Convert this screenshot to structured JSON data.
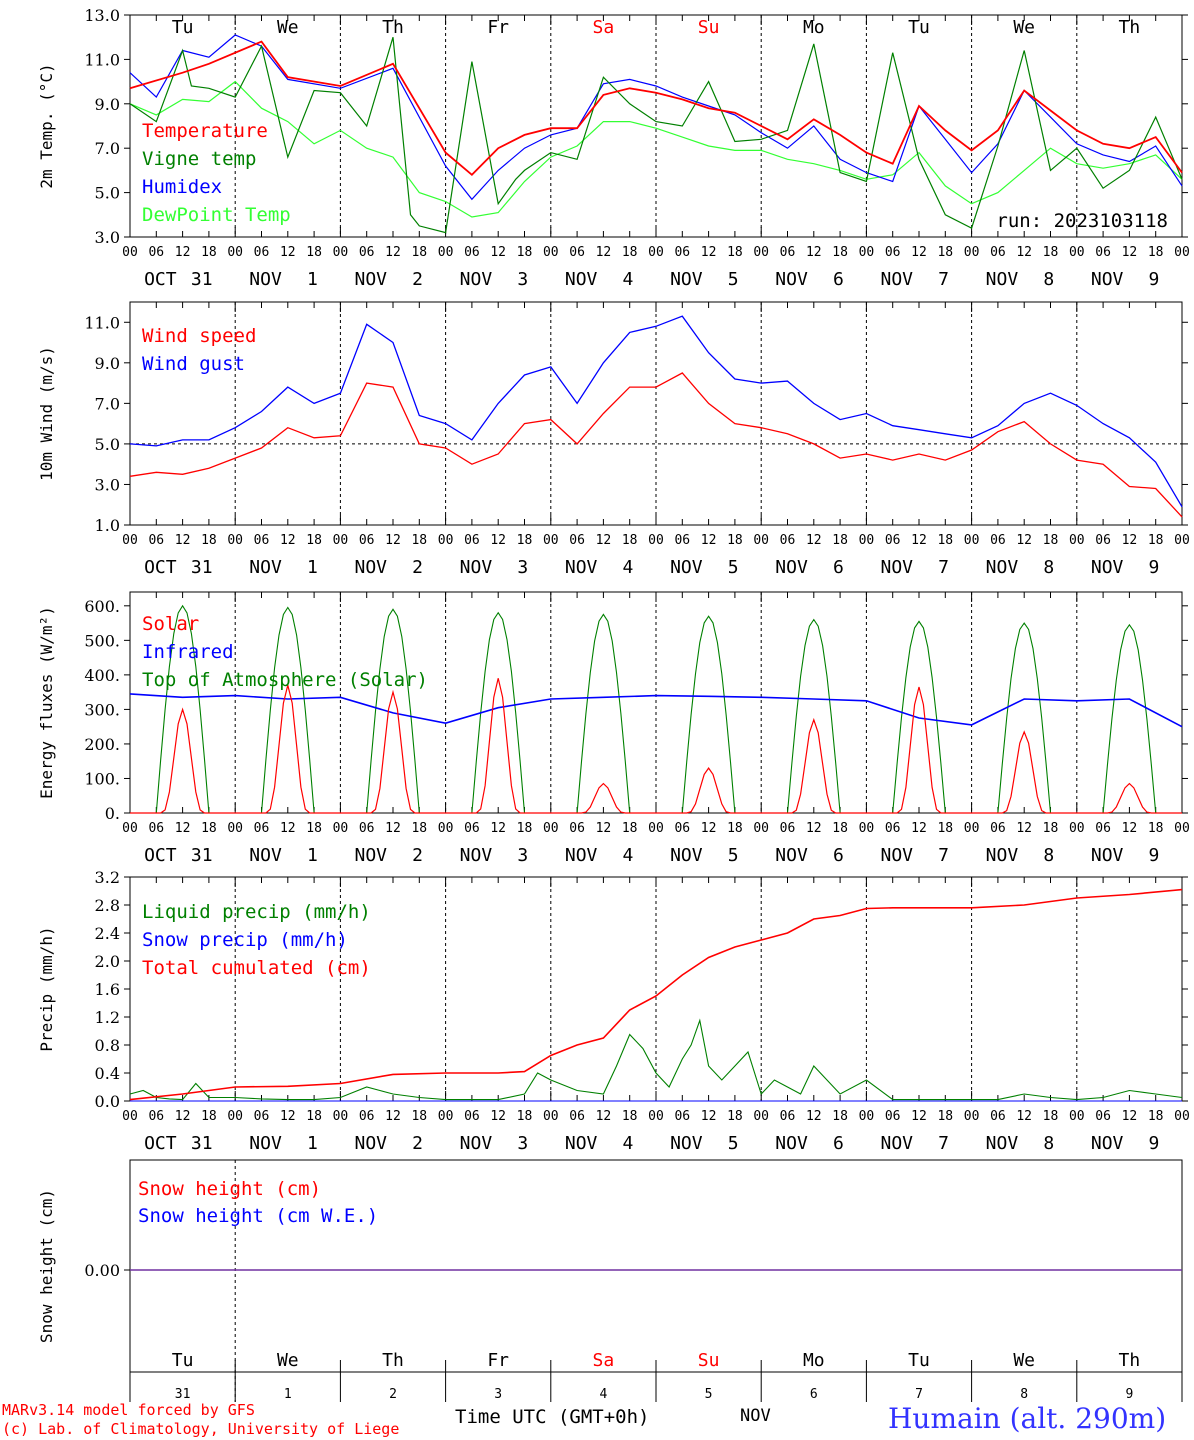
{
  "chart_data": [
    {
      "type": "line",
      "ylabel": "2m Temp. (°C)",
      "yticks": [
        "3.0",
        "5.0",
        "7.0",
        "9.0",
        "11.0",
        "13.0"
      ],
      "ylim": [
        3,
        13
      ],
      "x_start": "2023-10-31 00",
      "x_end": "2023-11-10 00",
      "run_label": "run: 2023103118",
      "legend_placement": "top-left",
      "series": [
        {
          "name": "Temperature",
          "color": "#ff0000",
          "x_hours": [
            0,
            12,
            18,
            30,
            36,
            48,
            60,
            72,
            78,
            84,
            90,
            96,
            102,
            108,
            114,
            120,
            126,
            132,
            138,
            144,
            150,
            156,
            162,
            168,
            174,
            180,
            186,
            192,
            198,
            204,
            210,
            216,
            222,
            228,
            234,
            240
          ],
          "values": [
            9.7,
            10.4,
            10.8,
            11.8,
            10.2,
            9.8,
            10.8,
            6.8,
            5.8,
            7.0,
            7.6,
            7.9,
            7.9,
            9.4,
            9.7,
            9.5,
            9.2,
            8.8,
            8.6,
            8.0,
            7.4,
            8.3,
            7.6,
            6.8,
            6.3,
            8.9,
            7.8,
            6.9,
            7.8,
            9.6,
            8.7,
            7.8,
            7.2,
            7.0,
            7.5,
            5.9
          ]
        },
        {
          "name": "Vigne temp",
          "color": "#008000",
          "x_hours": [
            0,
            6,
            12,
            14,
            18,
            24,
            30,
            36,
            42,
            48,
            54,
            60,
            64,
            66,
            72,
            78,
            84,
            88,
            90,
            96,
            102,
            108,
            114,
            120,
            126,
            132,
            138,
            144,
            150,
            156,
            162,
            168,
            174,
            180,
            186,
            192,
            198,
            204,
            210,
            216,
            222,
            228,
            234,
            240
          ],
          "values": [
            9.0,
            8.2,
            11.4,
            9.8,
            9.7,
            9.3,
            11.6,
            6.6,
            9.6,
            9.5,
            8.0,
            12.0,
            4.0,
            3.5,
            3.2,
            10.9,
            4.5,
            5.6,
            6.0,
            6.8,
            6.5,
            10.2,
            9.0,
            8.2,
            8.0,
            10.0,
            7.3,
            7.4,
            7.8,
            11.7,
            5.9,
            5.5,
            11.3,
            6.5,
            4.0,
            3.4,
            7.1,
            11.4,
            6.0,
            7.0,
            5.2,
            6.0,
            8.4,
            5.6
          ]
        },
        {
          "name": "Humidex",
          "color": "#0000ff",
          "x_hours": [
            0,
            6,
            12,
            18,
            24,
            30,
            36,
            48,
            60,
            72,
            78,
            84,
            90,
            96,
            102,
            108,
            114,
            120,
            126,
            132,
            138,
            144,
            150,
            156,
            162,
            168,
            174,
            180,
            186,
            192,
            198,
            204,
            210,
            216,
            222,
            228,
            234,
            240
          ],
          "values": [
            10.4,
            9.3,
            11.4,
            11.1,
            12.1,
            11.6,
            10.1,
            9.7,
            10.6,
            6.2,
            4.7,
            6.0,
            7.0,
            7.6,
            7.9,
            9.9,
            10.1,
            9.8,
            9.3,
            8.9,
            8.5,
            7.7,
            7.0,
            8.0,
            6.5,
            5.9,
            5.5,
            8.9,
            7.4,
            5.9,
            7.2,
            9.6,
            8.4,
            7.2,
            6.7,
            6.4,
            7.1,
            5.3
          ]
        },
        {
          "name": "DewPoint Temp",
          "color": "#33ff33",
          "x_hours": [
            0,
            6,
            12,
            18,
            24,
            30,
            36,
            42,
            48,
            54,
            60,
            66,
            72,
            78,
            84,
            90,
            96,
            102,
            108,
            114,
            120,
            126,
            132,
            138,
            144,
            150,
            156,
            162,
            168,
            174,
            180,
            186,
            192,
            198,
            204,
            210,
            216,
            222,
            228,
            234,
            240
          ],
          "values": [
            9.0,
            8.5,
            9.2,
            9.1,
            10.0,
            8.8,
            8.2,
            7.2,
            7.8,
            7.0,
            6.6,
            5.0,
            4.6,
            3.9,
            4.1,
            5.5,
            6.6,
            7.1,
            8.2,
            8.2,
            7.9,
            7.5,
            7.1,
            6.9,
            6.9,
            6.5,
            6.3,
            6.0,
            5.6,
            5.8,
            6.8,
            5.3,
            4.5,
            5.0,
            6.0,
            7.0,
            6.3,
            6.1,
            6.3,
            6.7,
            5.6
          ]
        }
      ]
    },
    {
      "type": "line",
      "ylabel": "10m Wind (m/s)",
      "yticks": [
        "1.0",
        "3.0",
        "5.0",
        "7.0",
        "9.0",
        "11.0"
      ],
      "ylim": [
        1,
        12
      ],
      "reference_line": 5,
      "legend_placement": "top-left",
      "series": [
        {
          "name": "Wind speed",
          "color": "#ff0000",
          "x_hours": [
            0,
            6,
            12,
            18,
            24,
            30,
            36,
            42,
            48,
            54,
            60,
            66,
            72,
            78,
            84,
            90,
            96,
            102,
            108,
            114,
            120,
            126,
            132,
            138,
            144,
            150,
            156,
            162,
            168,
            174,
            180,
            186,
            192,
            198,
            204,
            210,
            216,
            222,
            228,
            234,
            240
          ],
          "values": [
            3.4,
            3.6,
            3.5,
            3.8,
            4.3,
            4.8,
            5.8,
            5.3,
            5.4,
            8.0,
            7.8,
            5.0,
            4.8,
            4.0,
            4.5,
            6.0,
            6.2,
            5.0,
            6.5,
            7.8,
            7.8,
            8.5,
            7.0,
            6.0,
            5.8,
            5.5,
            5.0,
            4.3,
            4.5,
            4.2,
            4.5,
            4.2,
            4.7,
            5.6,
            6.1,
            5.0,
            4.2,
            4.0,
            2.9,
            2.8,
            1.4
          ]
        },
        {
          "name": "Wind gust",
          "color": "#0000ff",
          "x_hours": [
            0,
            6,
            12,
            18,
            24,
            30,
            36,
            42,
            48,
            54,
            60,
            66,
            72,
            78,
            84,
            90,
            96,
            102,
            108,
            114,
            120,
            126,
            132,
            138,
            144,
            150,
            156,
            162,
            168,
            174,
            180,
            186,
            192,
            198,
            204,
            210,
            216,
            222,
            228,
            234,
            240
          ],
          "values": [
            5.0,
            4.9,
            5.2,
            5.2,
            5.8,
            6.6,
            7.8,
            7.0,
            7.5,
            10.9,
            10.0,
            6.4,
            6.0,
            5.2,
            7.0,
            8.4,
            8.8,
            7.0,
            9.0,
            10.5,
            10.8,
            11.3,
            9.5,
            8.2,
            8.0,
            8.1,
            7.0,
            6.2,
            6.5,
            5.9,
            5.7,
            5.5,
            5.3,
            5.9,
            7.0,
            7.5,
            6.9,
            6.0,
            5.3,
            4.1,
            1.9
          ]
        }
      ]
    },
    {
      "type": "line",
      "ylabel": "Energy fluxes (W/m²)",
      "yticks": [
        "0.",
        "100.",
        "200.",
        "300.",
        "400.",
        "500.",
        "600."
      ],
      "ylim": [
        0,
        640
      ],
      "legend_placement": "top-left",
      "series": [
        {
          "name": "Solar",
          "color": "#ff0000",
          "peak_hours": [
            12,
            36,
            60,
            84,
            108,
            132,
            156,
            180,
            204,
            228
          ],
          "peaks": [
            300,
            370,
            350,
            390,
            85,
            130,
            270,
            365,
            235,
            85
          ]
        },
        {
          "name": "Infrared",
          "color": "#0000ff",
          "x_hours": [
            0,
            12,
            24,
            36,
            48,
            60,
            72,
            84,
            96,
            108,
            120,
            132,
            144,
            156,
            168,
            180,
            192,
            204,
            216,
            228,
            240
          ],
          "values": [
            345,
            335,
            340,
            330,
            335,
            290,
            260,
            305,
            330,
            335,
            340,
            338,
            335,
            330,
            325,
            275,
            255,
            330,
            325,
            330,
            250
          ]
        },
        {
          "name": "Top of Atmosphere (Solar)",
          "color": "#008000",
          "peak_hours": [
            12,
            36,
            60,
            84,
            108,
            132,
            156,
            180,
            204,
            228
          ],
          "peaks": [
            600,
            595,
            590,
            580,
            575,
            570,
            560,
            555,
            550,
            545
          ]
        }
      ]
    },
    {
      "type": "line",
      "ylabel": "Precip (mm/h)",
      "yticks": [
        "0.0",
        "0.4",
        "0.8",
        "1.2",
        "1.6",
        "2.0",
        "2.4",
        "2.8",
        "3.2"
      ],
      "ylim": [
        0,
        3.2
      ],
      "legend_placement": "top-left",
      "series": [
        {
          "name": "Liquid precip (mm/h)",
          "color": "#008000",
          "x_hours": [
            0,
            3,
            6,
            9,
            12,
            15,
            18,
            24,
            30,
            36,
            42,
            48,
            54,
            57,
            60,
            66,
            72,
            78,
            84,
            90,
            93,
            96,
            102,
            108,
            111,
            114,
            117,
            120,
            123,
            126,
            128,
            130,
            132,
            135,
            138,
            141,
            144,
            147,
            150,
            153,
            156,
            162,
            168,
            174,
            180,
            186,
            192,
            198,
            204,
            210,
            216,
            222,
            228,
            234,
            240
          ],
          "values": [
            0.1,
            0.15,
            0.05,
            0.03,
            0.02,
            0.25,
            0.05,
            0.05,
            0.03,
            0.02,
            0.02,
            0.05,
            0.2,
            0.15,
            0.1,
            0.05,
            0.02,
            0.02,
            0.02,
            0.1,
            0.4,
            0.3,
            0.15,
            0.1,
            0.5,
            0.95,
            0.75,
            0.4,
            0.2,
            0.6,
            0.8,
            1.15,
            0.5,
            0.3,
            0.5,
            0.7,
            0.1,
            0.3,
            0.2,
            0.1,
            0.5,
            0.1,
            0.3,
            0.02,
            0.02,
            0.02,
            0.02,
            0.02,
            0.1,
            0.05,
            0.02,
            0.05,
            0.15,
            0.1,
            0.05
          ]
        },
        {
          "name": "Snow precip (mm/h)",
          "color": "#0000ff",
          "x_hours": [
            0,
            240
          ],
          "values": [
            0,
            0
          ]
        },
        {
          "name": "Total cumulated (cm)",
          "color": "#ff0000",
          "x_hours": [
            0,
            12,
            24,
            36,
            48,
            60,
            72,
            84,
            90,
            96,
            102,
            108,
            114,
            120,
            126,
            132,
            138,
            144,
            150,
            156,
            162,
            168,
            174,
            180,
            192,
            204,
            216,
            228,
            240
          ],
          "values": [
            0.02,
            0.1,
            0.2,
            0.21,
            0.25,
            0.38,
            0.4,
            0.4,
            0.42,
            0.65,
            0.8,
            0.9,
            1.3,
            1.5,
            1.8,
            2.05,
            2.2,
            2.3,
            2.4,
            2.6,
            2.65,
            2.75,
            2.76,
            2.76,
            2.76,
            2.8,
            2.9,
            2.95,
            3.02
          ]
        }
      ]
    },
    {
      "type": "line",
      "ylabel": "Snow height (cm)",
      "ytick": "0.00",
      "legend_placement": "top-left",
      "series": [
        {
          "name": "Snow height (cm)",
          "color": "#ff0000",
          "x_hours": [
            0,
            240
          ],
          "values": [
            0,
            0
          ]
        },
        {
          "name": "Snow height (cm W.E.)",
          "color": "#0000ff",
          "x_hours": [
            0,
            240
          ],
          "values": [
            0,
            0
          ]
        }
      ]
    }
  ],
  "hour_labels": [
    "00",
    "06",
    "12",
    "18"
  ],
  "final_hour_label": "00",
  "day_names": [
    "Tu",
    "We",
    "Th",
    "Fr",
    "Sa",
    "Su",
    "Mo",
    "Tu",
    "We",
    "Th"
  ],
  "weekend_color": "#ff0000",
  "date_labels": [
    [
      "OCT",
      "31"
    ],
    [
      "NOV",
      "1"
    ],
    [
      "NOV",
      "2"
    ],
    [
      "NOV",
      "3"
    ],
    [
      "NOV",
      "4"
    ],
    [
      "NOV",
      "5"
    ],
    [
      "NOV",
      "6"
    ],
    [
      "NOV",
      "7"
    ],
    [
      "NOV",
      "8"
    ],
    [
      "NOV",
      "9"
    ]
  ],
  "day_numbers": [
    "31",
    "1",
    "2",
    "3",
    "4",
    "5",
    "6",
    "7",
    "8",
    "9"
  ],
  "footer": {
    "model": "MARv3.14 model forced by GFS",
    "credit": "(c) Lab. of Climatology, University of Liege",
    "time_axis": "Time UTC (GMT+0h)",
    "month": "NOV",
    "location": "Humain (alt. 290m)"
  }
}
